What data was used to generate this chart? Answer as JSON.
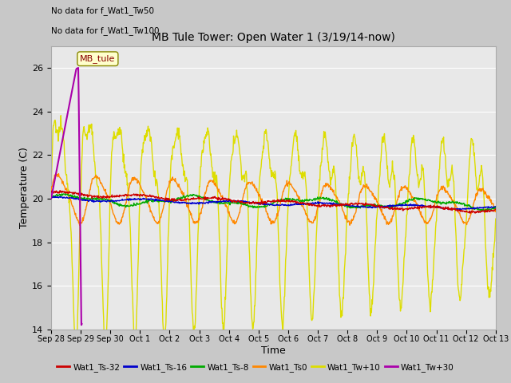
{
  "title": "MB Tule Tower: Open Water 1 (3/19/14-now)",
  "xlabel": "Time",
  "ylabel": "Temperature (C)",
  "no_data_text": [
    "No data for f_Wat1_Tw50",
    "No data for f_Wat1_Tw100"
  ],
  "legend_label": "MB_tule",
  "x_tick_labels": [
    "Sep 28",
    "Sep 29",
    "Sep 30",
    "Oct 1",
    "Oct 2",
    "Oct 3",
    "Oct 4",
    "Oct 5",
    "Oct 6",
    "Oct 7",
    "Oct 8",
    "Oct 9",
    "Oct 10",
    "Oct 11",
    "Oct 12",
    "Oct 13"
  ],
  "ylim": [
    14,
    27
  ],
  "y_ticks": [
    14,
    16,
    18,
    20,
    22,
    24,
    26
  ],
  "fig_bg_color": "#c8c8c8",
  "plot_bg_color": "#e8e8e8",
  "grid_color": "#ffffff",
  "line_colors": {
    "Ts32": "#cc0000",
    "Ts16": "#0000cc",
    "Ts8": "#00aa00",
    "Ts0": "#ff8800",
    "Tw10": "#dddd00",
    "Tw30": "#aa00aa"
  },
  "legend_entries": [
    {
      "label": "Wat1_Ts-32",
      "color": "#cc0000"
    },
    {
      "label": "Wat1_Ts-16",
      "color": "#0000cc"
    },
    {
      "label": "Wat1_Ts-8",
      "color": "#00aa00"
    },
    {
      "label": "Wat1_Ts0",
      "color": "#ff8800"
    },
    {
      "label": "Wat1_Tw+10",
      "color": "#dddd00"
    },
    {
      "label": "Wat1_Tw+30",
      "color": "#aa00aa"
    }
  ]
}
